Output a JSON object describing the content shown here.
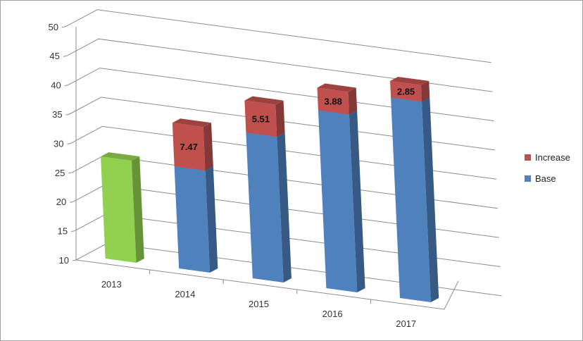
{
  "chart_data": {
    "type": "bar",
    "subtype": "3d-stacked-column",
    "title": "",
    "xlabel": "",
    "ylabel": "",
    "ylim": [
      10,
      50
    ],
    "yticks": [
      "10",
      "15",
      "20",
      "25",
      "30",
      "35",
      "40",
      "45",
      "50"
    ],
    "categories": [
      "2013",
      "2014",
      "2015",
      "2016",
      "2017"
    ],
    "grid": true,
    "legend_position": "right",
    "series": [
      {
        "name": "Base",
        "color": "#4f81bd",
        "values": [
          null,
          27.5,
          34.97,
          40.48,
          44.36
        ]
      },
      {
        "name": "Increase",
        "color": "#c0504d",
        "values": [
          null,
          7.47,
          5.51,
          3.88,
          2.85
        ],
        "labels": [
          "",
          "7.47",
          "5.51",
          "3.88",
          "2.85"
        ]
      }
    ],
    "highlight": {
      "category": "2013",
      "value": 27.5,
      "color": "#92d050"
    }
  }
}
